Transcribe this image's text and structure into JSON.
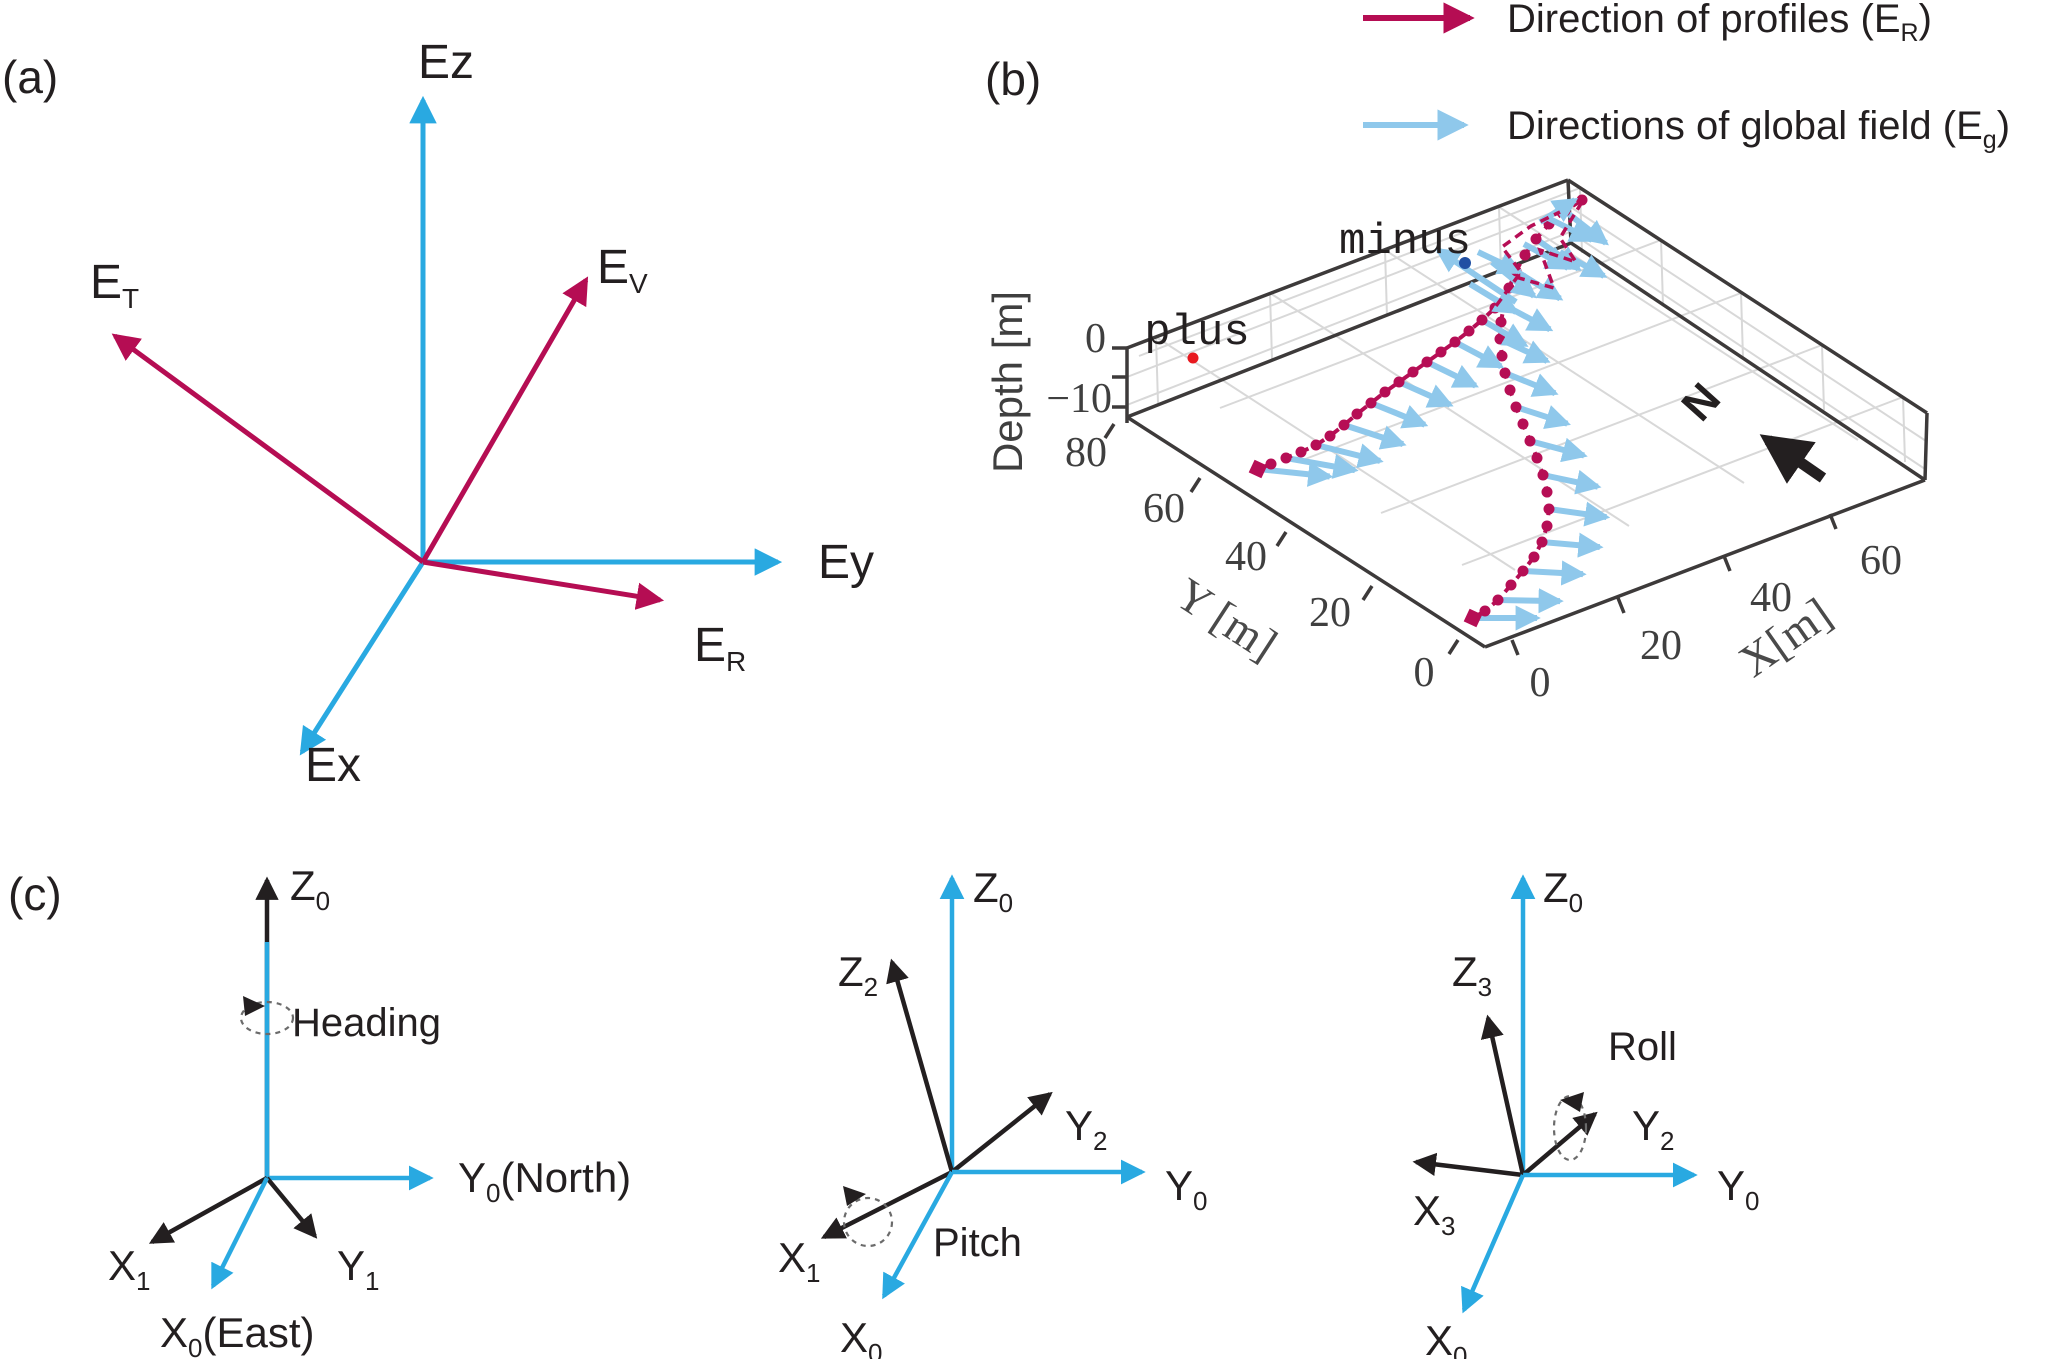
{
  "colors": {
    "global_axis_blue": "#29a9e1",
    "profile_crimson": "#b50d53",
    "field_light_blue": "#8fc8eb",
    "plus_red": "#e8191f",
    "minus_navy": "#2150a3",
    "ink": "#231f20",
    "tick_gray": "#3f3f3f",
    "grid_gray": "#d8d8d8",
    "box_dark": "#3d3a3a"
  },
  "panel_a": {
    "label": "(a)",
    "ez": "Ez",
    "ey": "Ey",
    "ex": "Ex",
    "et": {
      "m": "E",
      "s": "T"
    },
    "ev": {
      "m": "E",
      "s": "V"
    },
    "er": {
      "m": "E",
      "s": "R"
    }
  },
  "panel_b": {
    "label": "(b)",
    "legend": {
      "profiles": {
        "text": "Direction of profiles",
        "par": "(E",
        "sub": "R",
        "close": ")"
      },
      "global": {
        "text": "Directions of global field",
        "par": "(E",
        "sub": "g",
        "close": ")"
      }
    },
    "depth_label": "Depth [m]",
    "depth_ticks": [
      "0",
      "−10"
    ],
    "y_label": "Y [m]",
    "y_ticks": [
      "80",
      "60",
      "40",
      "20",
      "0"
    ],
    "x_label": "X[m]",
    "x_ticks": [
      "0",
      "20",
      "40",
      "60"
    ],
    "annotations": {
      "plus": "plus",
      "minus": "minus",
      "north": "N"
    },
    "axis_ranges": {
      "depth": [
        -10,
        0
      ],
      "y": [
        0,
        80
      ],
      "x": [
        0,
        60
      ]
    },
    "trajectories": [
      {
        "name": "profile-track-south",
        "points": [
          [
            1582,
            200
          ],
          [
            1565,
            211
          ],
          [
            1549,
            224
          ],
          [
            1536,
            239
          ],
          [
            1525,
            255
          ],
          [
            1516,
            271
          ],
          [
            1509,
            288
          ],
          [
            1504,
            305
          ],
          [
            1501,
            322
          ],
          [
            1500,
            339
          ],
          [
            1502,
            356
          ],
          [
            1505,
            373
          ],
          [
            1510,
            390
          ],
          [
            1516,
            407
          ],
          [
            1523,
            424
          ],
          [
            1530,
            441
          ],
          [
            1537,
            458
          ],
          [
            1543,
            475
          ],
          [
            1547,
            492
          ],
          [
            1549,
            509
          ],
          [
            1547,
            526
          ],
          [
            1542,
            542
          ],
          [
            1534,
            557
          ],
          [
            1523,
            571
          ],
          [
            1511,
            585
          ],
          [
            1498,
            600
          ],
          [
            1485,
            611
          ],
          [
            1473,
            618
          ]
        ],
        "arrows": [
          [
            1,
            38,
            52
          ],
          [
            3,
            35,
            52
          ],
          [
            5,
            32,
            52
          ],
          [
            7,
            28,
            52
          ],
          [
            9,
            25,
            52
          ],
          [
            11,
            22,
            54
          ],
          [
            13,
            18,
            54
          ],
          [
            15,
            15,
            56
          ],
          [
            17,
            12,
            56
          ],
          [
            19,
            8,
            58
          ],
          [
            21,
            5,
            58
          ],
          [
            23,
            3,
            60
          ],
          [
            25,
            1,
            62
          ],
          [
            27,
            0,
            64
          ]
        ]
      },
      {
        "name": "profile-track-west",
        "points": [
          [
            1495,
            308
          ],
          [
            1482,
            320
          ],
          [
            1469,
            331
          ],
          [
            1455,
            342
          ],
          [
            1441,
            352
          ],
          [
            1427,
            362
          ],
          [
            1413,
            372
          ],
          [
            1399,
            382
          ],
          [
            1385,
            392
          ],
          [
            1371,
            403
          ],
          [
            1357,
            414
          ],
          [
            1344,
            425
          ],
          [
            1330,
            436
          ],
          [
            1316,
            445
          ],
          [
            1301,
            452
          ],
          [
            1286,
            458
          ],
          [
            1271,
            464
          ],
          [
            1258,
            469
          ]
        ],
        "arrows": [
          [
            1,
            30,
            50
          ],
          [
            3,
            28,
            52
          ],
          [
            5,
            26,
            54
          ],
          [
            7,
            24,
            56
          ],
          [
            9,
            22,
            58
          ],
          [
            11,
            18,
            62
          ],
          [
            13,
            14,
            66
          ],
          [
            15,
            10,
            70
          ],
          [
            17,
            6,
            72
          ]
        ]
      }
    ],
    "cluster_arrows": [
      [
        1516,
        302,
        1438,
        250
      ],
      [
        1492,
        262,
        1534,
        296
      ],
      [
        1470,
        284,
        1516,
        312
      ],
      [
        1524,
        244,
        1568,
        268
      ],
      [
        1548,
        218,
        1592,
        240
      ],
      [
        1478,
        252,
        1520,
        272
      ],
      [
        1560,
        252,
        1604,
        276
      ],
      [
        1540,
        222,
        1575,
        200
      ]
    ],
    "cluster_paths": [
      [
        [
          1582,
          202
        ],
        [
          1560,
          238
        ],
        [
          1576,
          262
        ],
        [
          1540,
          250
        ],
        [
          1554,
          288
        ],
        [
          1512,
          276
        ]
      ],
      [
        [
          1496,
          306
        ],
        [
          1521,
          272
        ],
        [
          1502,
          247
        ],
        [
          1531,
          226
        ],
        [
          1560,
          212
        ]
      ]
    ],
    "points": {
      "plus": [
        1193,
        358
      ],
      "minus": [
        1465,
        263
      ]
    }
  },
  "panel_c": {
    "label": "(c)",
    "d1": {
      "z0": {
        "m": "Z",
        "s": "0"
      },
      "heading": "Heading",
      "y0": {
        "m": "Y",
        "s": "0",
        "t": "(North)"
      },
      "x1": {
        "m": "X",
        "s": "1"
      },
      "y1": {
        "m": "Y",
        "s": "1"
      },
      "x0": {
        "m": "X",
        "s": "0",
        "t": "(East)"
      }
    },
    "d2": {
      "z0": {
        "m": "Z",
        "s": "0"
      },
      "z2": {
        "m": "Z",
        "s": "2"
      },
      "y2": {
        "m": "Y",
        "s": "2"
      },
      "y0": {
        "m": "Y",
        "s": "0"
      },
      "x1": {
        "m": "X",
        "s": "1"
      },
      "x0": {
        "m": "X",
        "s": "0"
      },
      "pitch": "Pitch"
    },
    "d3": {
      "z0": {
        "m": "Z",
        "s": "0"
      },
      "z3": {
        "m": "Z",
        "s": "3"
      },
      "roll": "Roll",
      "y2": {
        "m": "Y",
        "s": "2"
      },
      "y0": {
        "m": "Y",
        "s": "0"
      },
      "x3": {
        "m": "X",
        "s": "3"
      },
      "x0": {
        "m": "X",
        "s": "0"
      }
    }
  }
}
